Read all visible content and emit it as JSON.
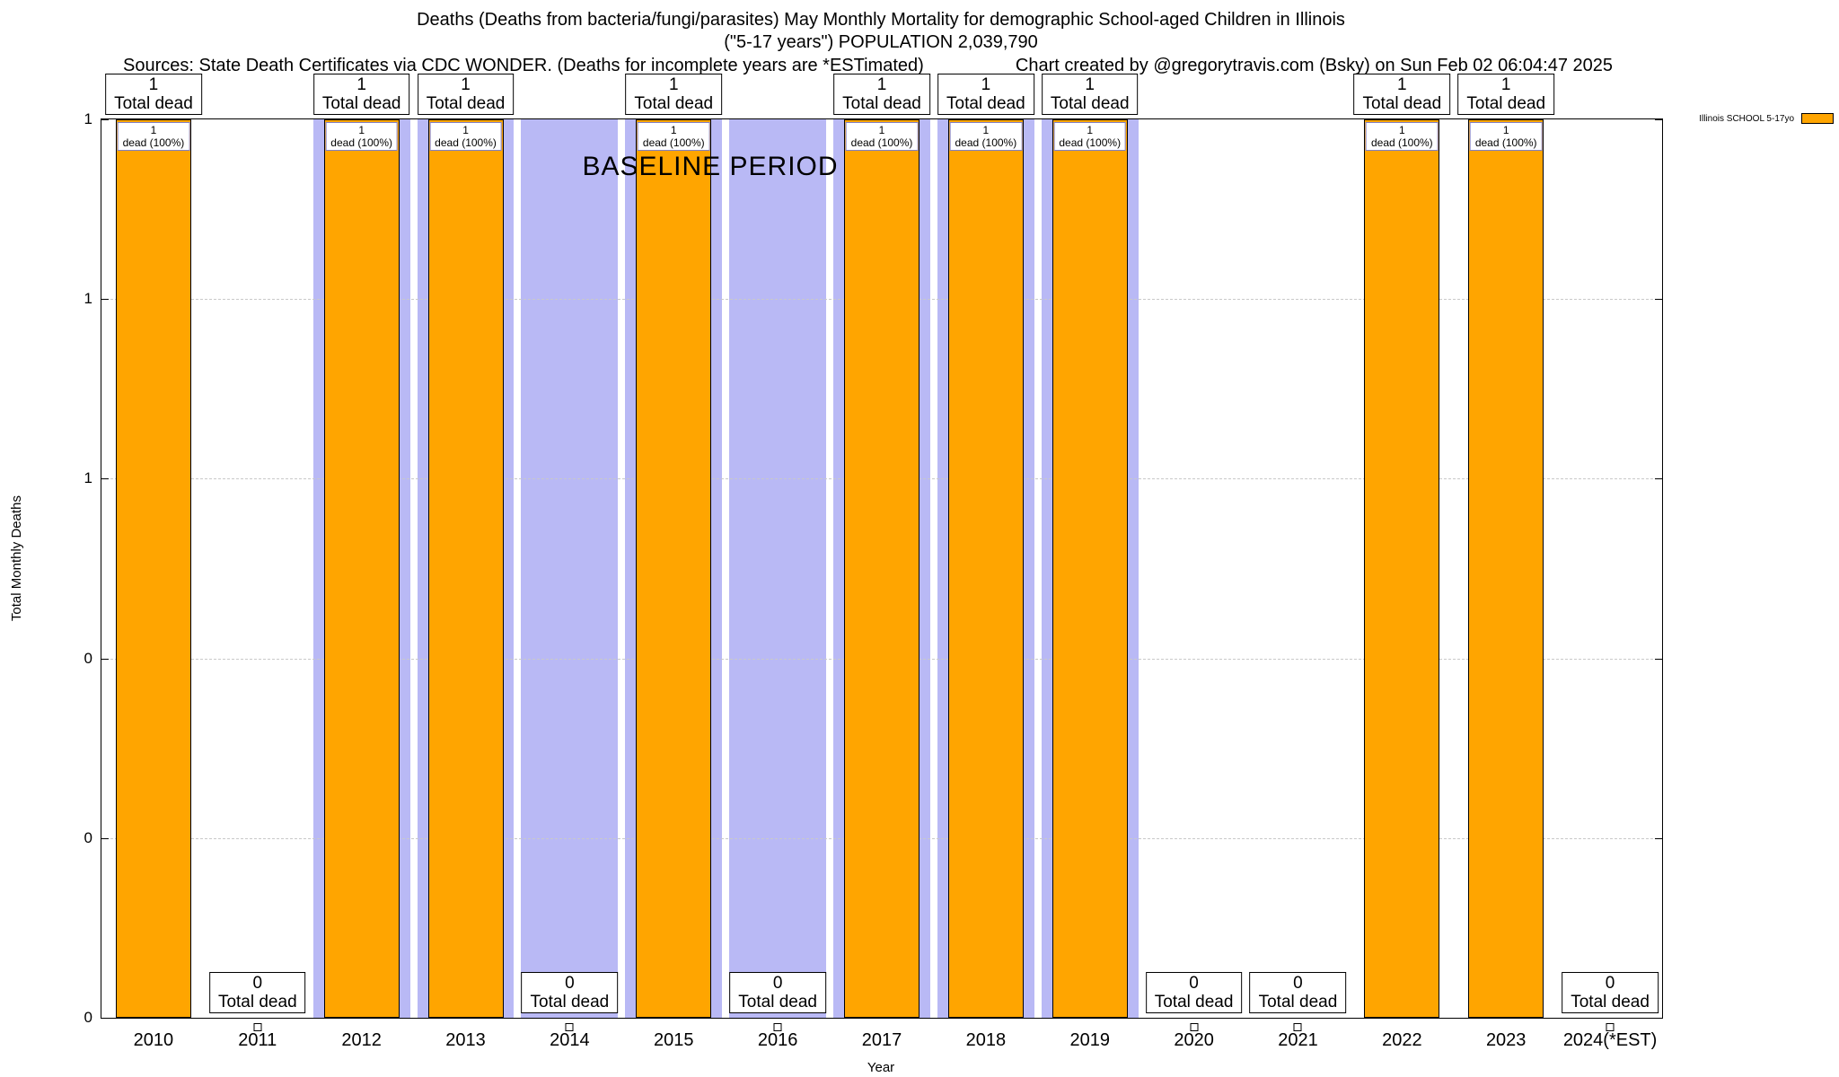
{
  "header": {
    "line1": "Deaths (Deaths from bacteria/fungi/parasites) May Monthly Mortality for demographic School-aged Children in Illinois",
    "line2": "(\"5-17 years\") POPULATION 2,039,790",
    "sources": "Sources: State Death Certificates via CDC WONDER. (Deaths for incomplete years are *ESTimated)",
    "credit": "Chart created by @gregorytravis.com (Bsky) on Sun Feb 02 06:04:47 2025"
  },
  "legend": {
    "label": "Illinois SCHOOL 5-17yo"
  },
  "chart_data": {
    "type": "bar",
    "title": "Deaths (Deaths from bacteria/fungi/parasites) May Monthly Mortality for demographic School-aged Children in Illinois (\"5-17 years\") POPULATION 2,039,790",
    "xlabel": "Year",
    "ylabel": "Total Monthly Deaths",
    "ylim": [
      0,
      1
    ],
    "grid": true,
    "legend_position": "top-right",
    "categories": [
      "2010",
      "2011",
      "2012",
      "2013",
      "2014",
      "2015",
      "2016",
      "2017",
      "2018",
      "2019",
      "2020",
      "2021",
      "2022",
      "2023",
      "2024(*EST)"
    ],
    "values": [
      1,
      0,
      1,
      1,
      0,
      1,
      0,
      1,
      1,
      1,
      0,
      0,
      1,
      1,
      0
    ],
    "bar_color": "#FFA500",
    "yticks": {
      "fracs": [
        0,
        0.2,
        0.4,
        0.6,
        0.8,
        1
      ],
      "labels": [
        "0",
        "0",
        "0",
        "1",
        "1",
        "1"
      ]
    },
    "baseline": {
      "label": "BASELINE PERIOD",
      "years": [
        "2012",
        "2013",
        "2014",
        "2015",
        "2016",
        "2017",
        "2018",
        "2019"
      ],
      "color": "#b9b9f5"
    },
    "annotations": {
      "total_label": "Total dead",
      "inner_label": "dead (100%)"
    }
  }
}
